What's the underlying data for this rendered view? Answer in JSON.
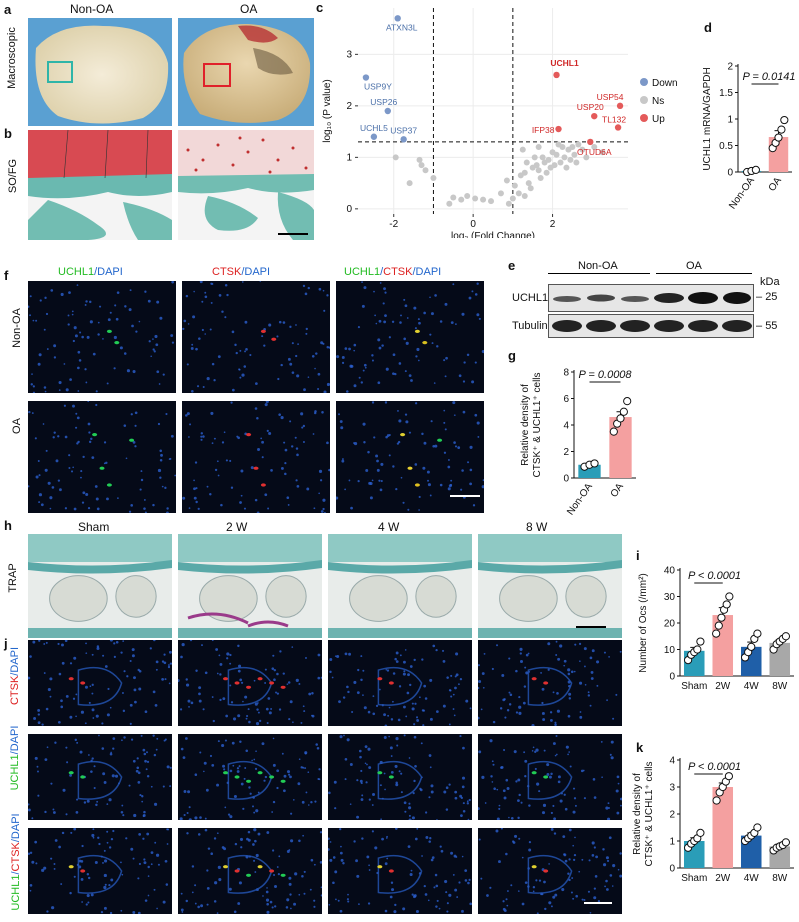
{
  "panels": {
    "a": {
      "letter": "a",
      "col1": "Non-OA",
      "col2": "OA",
      "row_label": "Macroscopic"
    },
    "b": {
      "letter": "b",
      "row_label": "SO/FG"
    },
    "c": {
      "letter": "c"
    },
    "d": {
      "letter": "d"
    },
    "e": {
      "letter": "e",
      "group1": "Non-OA",
      "group2": "OA",
      "kda": "kDa",
      "bands": [
        {
          "name": "UCHL1",
          "mw": "25"
        },
        {
          "name": "Tubulin",
          "mw": "55"
        }
      ]
    },
    "f": {
      "letter": "f",
      "rows": [
        "Non-OA",
        "OA"
      ],
      "headers": [
        [
          {
            "text": "UCHL1",
            "color": "#22bb22"
          },
          {
            "text": "/DAPI",
            "color": "#2266cc"
          }
        ],
        [
          {
            "text": "CTSK",
            "color": "#dd2222"
          },
          {
            "text": "/DAPI",
            "color": "#2266cc"
          }
        ],
        [
          {
            "text": "UCHL1",
            "color": "#22bb22"
          },
          {
            "text": "/",
            "color": "#2266cc"
          },
          {
            "text": "CTSK",
            "color": "#dd2222"
          },
          {
            "text": "/DAPI",
            "color": "#2266cc"
          }
        ]
      ]
    },
    "g": {
      "letter": "g"
    },
    "h": {
      "letter": "h",
      "cols": [
        "Sham",
        "2 W",
        "4 W",
        "8 W"
      ],
      "row_label": "TRAP"
    },
    "i": {
      "letter": "i"
    },
    "j": {
      "letter": "j",
      "rows": [
        [
          {
            "text": "CTSK",
            "color": "#dd2222"
          },
          {
            "text": "/DAPI",
            "color": "#2266cc"
          }
        ],
        [
          {
            "text": "UCHL1",
            "color": "#22bb22"
          },
          {
            "text": "/DAPI",
            "color": "#2266cc"
          }
        ],
        [
          {
            "text": "UCHL1",
            "color": "#22bb22"
          },
          {
            "text": "/",
            "color": "#2266cc"
          },
          {
            "text": "CTSK",
            "color": "#dd2222"
          },
          {
            "text": "/DAPI",
            "color": "#2266cc"
          }
        ]
      ]
    },
    "k": {
      "letter": "k"
    }
  },
  "chart_data": [
    {
      "id": "c",
      "type": "scatter",
      "xlabel": "log₂ (Fold Change)",
      "ylabel": "log₁₀ (P value)",
      "xlim": [
        -2.9,
        3.9
      ],
      "ylim": [
        -0.1,
        3.9
      ],
      "xticks": [
        -2,
        0,
        2
      ],
      "yticks": [
        0,
        1,
        2,
        3
      ],
      "threshold_x": [
        -1,
        1
      ],
      "threshold_y": 1.3,
      "legend": [
        {
          "label": "Down",
          "color": "#7c98c8"
        },
        {
          "label": "Ns",
          "color": "#c8c8c8"
        },
        {
          "label": "Up",
          "color": "#e45a5a"
        }
      ],
      "legend_position": "right",
      "labeled_points": [
        {
          "label": "ATXN3L",
          "x": -1.9,
          "y": 3.7,
          "group": "down"
        },
        {
          "label": "USP9Y",
          "x": -2.7,
          "y": 2.55,
          "group": "down"
        },
        {
          "label": "USP26",
          "x": -2.15,
          "y": 1.9,
          "group": "down"
        },
        {
          "label": "UCHL5",
          "x": -2.5,
          "y": 1.4,
          "group": "down"
        },
        {
          "label": "USP37",
          "x": -1.75,
          "y": 1.35,
          "group": "down"
        },
        {
          "label": "UCHL1",
          "x": 2.1,
          "y": 2.6,
          "group": "up"
        },
        {
          "label": "USP54",
          "x": 3.7,
          "y": 2.0,
          "group": "up"
        },
        {
          "label": "USP20",
          "x": 3.05,
          "y": 1.8,
          "group": "up"
        },
        {
          "label": "TL132",
          "x": 3.65,
          "y": 1.58,
          "group": "up"
        },
        {
          "label": "IFP38",
          "x": 2.15,
          "y": 1.55,
          "group": "up"
        },
        {
          "label": "OTUD6A",
          "x": 2.95,
          "y": 1.3,
          "group": "up"
        }
      ],
      "ns_points": [
        [
          -1.95,
          1.0
        ],
        [
          -1.2,
          0.75
        ],
        [
          -1.3,
          0.85
        ],
        [
          -1.35,
          0.95
        ],
        [
          -1.6,
          0.5
        ],
        [
          -1.0,
          0.6
        ],
        [
          -0.5,
          0.22
        ],
        [
          -0.3,
          0.18
        ],
        [
          -0.15,
          0.25
        ],
        [
          0.05,
          0.2
        ],
        [
          0.25,
          0.18
        ],
        [
          -0.6,
          0.1
        ],
        [
          0.45,
          0.15
        ],
        [
          0.7,
          0.3
        ],
        [
          0.85,
          0.55
        ],
        [
          1.0,
          0.2
        ],
        [
          1.05,
          0.45
        ],
        [
          1.15,
          0.3
        ],
        [
          1.2,
          0.65
        ],
        [
          1.3,
          0.7
        ],
        [
          1.35,
          0.9
        ],
        [
          1.4,
          0.5
        ],
        [
          1.45,
          0.4
        ],
        [
          1.5,
          0.8
        ],
        [
          1.55,
          1.0
        ],
        [
          1.6,
          0.85
        ],
        [
          1.65,
          0.75
        ],
        [
          1.7,
          0.6
        ],
        [
          1.75,
          1.0
        ],
        [
          1.8,
          0.9
        ],
        [
          1.85,
          0.7
        ],
        [
          1.9,
          0.95
        ],
        [
          1.95,
          0.8
        ],
        [
          2.0,
          1.1
        ],
        [
          2.05,
          0.85
        ],
        [
          2.1,
          1.05
        ],
        [
          2.2,
          0.9
        ],
        [
          2.25,
          1.2
        ],
        [
          2.3,
          1.0
        ],
        [
          2.35,
          0.8
        ],
        [
          2.4,
          1.15
        ],
        [
          2.45,
          0.95
        ],
        [
          2.5,
          1.2
        ],
        [
          2.55,
          1.05
        ],
        [
          2.6,
          0.9
        ],
        [
          2.65,
          1.25
        ],
        [
          2.75,
          1.15
        ],
        [
          2.85,
          1.0
        ],
        [
          3.05,
          1.2
        ],
        [
          3.25,
          1.1
        ],
        [
          1.3,
          0.25
        ],
        [
          0.9,
          0.1
        ],
        [
          1.65,
          1.2
        ],
        [
          2.15,
          1.25
        ],
        [
          1.25,
          1.15
        ]
      ]
    },
    {
      "id": "d",
      "type": "bar",
      "ylabel": "UCHL1 mRNA/GAPDH",
      "ylim": [
        0,
        2.0
      ],
      "yticks": [
        0,
        0.5,
        1.0,
        1.5,
        2.0
      ],
      "categories": [
        "Non-OA",
        "OA"
      ],
      "values": [
        0.02,
        0.66
      ],
      "errors": [
        0.02,
        0.12
      ],
      "points": [
        [
          0.0,
          0.02,
          0.04
        ],
        [
          0.45,
          0.55,
          0.65,
          0.8,
          0.98
        ]
      ],
      "colors": [
        "#2a9db8",
        "#f4a0a0"
      ],
      "stat": {
        "text": "P = 0.0141",
        "from": 0,
        "to": 1
      }
    },
    {
      "id": "g",
      "type": "bar",
      "ylabel": "Relative density of",
      "ylabel2": "CTSK⁺ & UCHL1⁺ cells",
      "ylim": [
        0,
        8
      ],
      "yticks": [
        0,
        2,
        4,
        6,
        8
      ],
      "categories": [
        "Non-OA",
        "OA"
      ],
      "values": [
        1.0,
        4.6
      ],
      "errors": [
        0.12,
        0.4
      ],
      "points": [
        [
          0.85,
          1.0,
          1.1
        ],
        [
          3.5,
          4.1,
          4.5,
          5.0,
          5.8
        ]
      ],
      "colors": [
        "#2a9db8",
        "#f4a0a0"
      ],
      "stat": {
        "text": "P = 0.0008",
        "from": 0,
        "to": 1
      }
    },
    {
      "id": "i",
      "type": "bar",
      "ylabel": "Number of Ocs (/mm²)",
      "ylim": [
        0,
        40
      ],
      "yticks": [
        0,
        10,
        20,
        30,
        40
      ],
      "categories": [
        "Sham",
        "2W",
        "4W",
        "8W"
      ],
      "values": [
        9.5,
        23.0,
        11.0,
        12.5
      ],
      "errors": [
        1.3,
        2.8,
        1.8,
        1.2
      ],
      "points": [
        [
          6,
          8,
          9,
          10,
          13
        ],
        [
          16,
          19,
          22,
          25,
          27,
          30
        ],
        [
          7,
          9,
          11,
          14,
          16
        ],
        [
          10,
          12,
          13,
          14,
          15
        ]
      ],
      "colors": [
        "#2a9db8",
        "#f4a0a0",
        "#1f5fa8",
        "#a8a8a8"
      ],
      "stat": {
        "text": "P < 0.0001",
        "from": 0,
        "to": 1
      }
    },
    {
      "id": "k",
      "type": "bar",
      "ylabel": "Relative density of",
      "ylabel2": "CTSK⁺ & UCHL1⁺ cells",
      "ylim": [
        0,
        4
      ],
      "yticks": [
        0,
        1,
        2,
        3,
        4
      ],
      "categories": [
        "Sham",
        "2W",
        "4W",
        "8W"
      ],
      "values": [
        1.0,
        3.0,
        1.2,
        0.8
      ],
      "errors": [
        0.12,
        0.15,
        0.1,
        0.08
      ],
      "points": [
        [
          0.75,
          0.9,
          1.0,
          1.1,
          1.3
        ],
        [
          2.5,
          2.8,
          3.0,
          3.2,
          3.4
        ],
        [
          1.0,
          1.1,
          1.2,
          1.3,
          1.5
        ],
        [
          0.65,
          0.75,
          0.8,
          0.85,
          0.95
        ]
      ],
      "colors": [
        "#2a9db8",
        "#f4a0a0",
        "#1f5fa8",
        "#a8a8a8"
      ],
      "stat": {
        "text": "P < 0.0001",
        "from": 0,
        "to": 1
      }
    }
  ]
}
